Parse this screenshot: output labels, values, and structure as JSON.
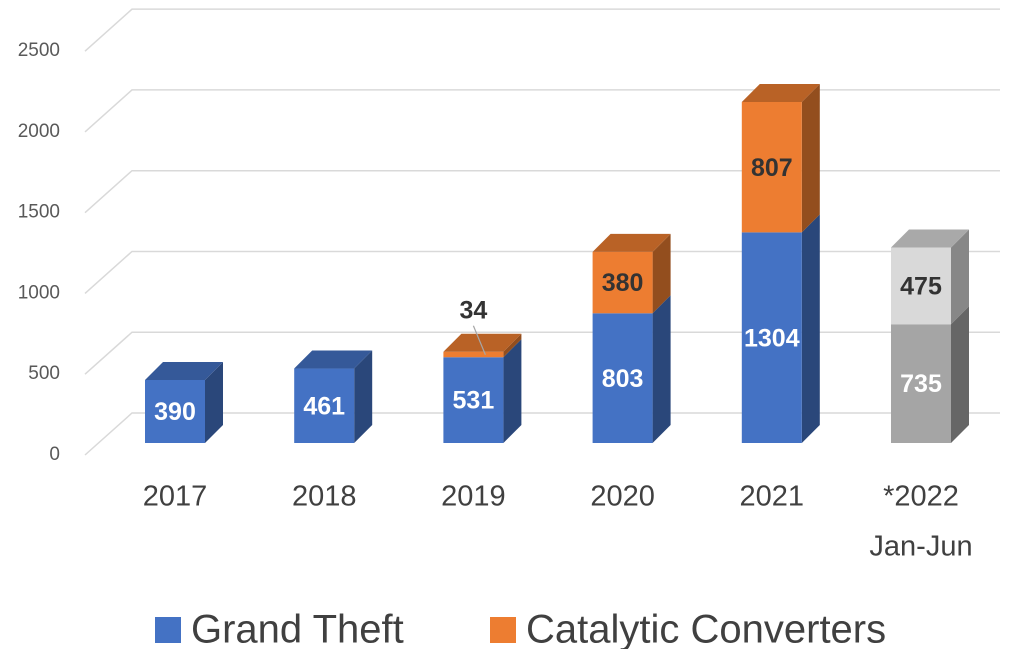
{
  "chart_data": {
    "type": "bar3d_stacked",
    "categories": [
      "2017",
      "2018",
      "2019",
      "2020",
      "2021",
      [
        "*2022",
        "Jan-Jun"
      ]
    ],
    "series": [
      {
        "name": "Grand Theft",
        "color": "#4472c4",
        "colors": [
          "#4472c4",
          "#4472c4",
          "#4472c4",
          "#4472c4",
          "#4472c4",
          "#a5a5a5"
        ],
        "label_colors": [
          "#ffffff",
          "#ffffff",
          "#ffffff",
          "#ffffff",
          "#ffffff",
          "#ffffff"
        ],
        "values": [
          390,
          461,
          531,
          803,
          1304,
          735
        ]
      },
      {
        "name": "Catalytic Converters",
        "color": "#ed7d31",
        "colors": [
          "#ed7d31",
          "#ed7d31",
          "#ed7d31",
          "#ed7d31",
          "#ed7d31",
          "#d9d9d9"
        ],
        "label_colors": [
          "#333333",
          "#333333",
          "#333333",
          "#333333",
          "#333333",
          "#333333"
        ],
        "values": [
          null,
          null,
          34,
          380,
          807,
          475
        ]
      }
    ],
    "ylim": [
      0,
      2500
    ],
    "yticks": [
      0,
      500,
      1000,
      1500,
      2000,
      2500
    ],
    "grid": true,
    "legend": "bottom"
  }
}
